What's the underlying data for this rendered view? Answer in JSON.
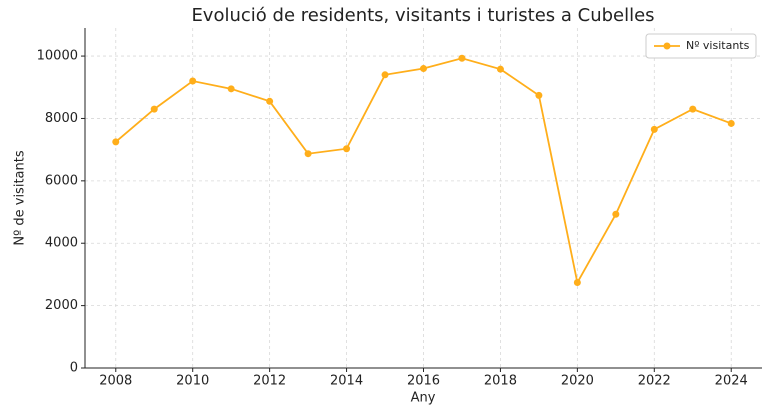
{
  "chart_data": {
    "type": "line",
    "title": "Evolució de residents, visitants i turistes a Cubelles",
    "xlabel": "Any",
    "ylabel": "Nº de visitants",
    "x": [
      2008,
      2009,
      2010,
      2011,
      2012,
      2013,
      2014,
      2015,
      2016,
      2017,
      2018,
      2019,
      2020,
      2021,
      2022,
      2023,
      2024
    ],
    "series": [
      {
        "name": "Nº visitants",
        "color": "#ffae1a",
        "values": [
          7250,
          8300,
          9200,
          8950,
          8550,
          6870,
          7030,
          9400,
          9600,
          9930,
          9580,
          8740,
          2740,
          4930,
          7650,
          8300,
          7840
        ]
      }
    ],
    "xlim": [
      2007.2,
      2024.8
    ],
    "ylim": [
      0,
      10900
    ],
    "xticks": [
      2008,
      2010,
      2012,
      2014,
      2016,
      2018,
      2020,
      2022,
      2024
    ],
    "yticks": [
      0,
      2000,
      4000,
      6000,
      8000,
      10000
    ],
    "grid": true,
    "legend": "upper right"
  }
}
